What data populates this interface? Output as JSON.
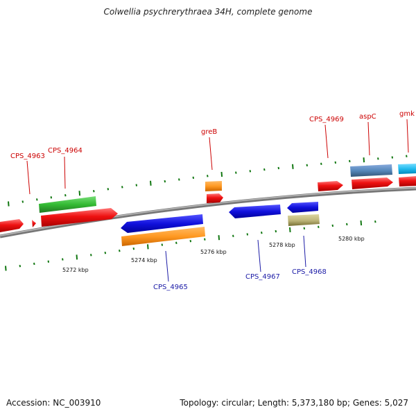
{
  "title": "Colwellia psychrerythraea 34H, complete genome",
  "footer": {
    "accession": "Accession: NC_003910",
    "summary": "Topology: circular; Length: 5,373,180 bp; Genes: 5,027"
  },
  "scale_labels": [
    "5272 kbp",
    "5274 kbp",
    "5276 kbp",
    "5278 kbp",
    "5280 kbp"
  ],
  "genes_top": [
    {
      "label": "CPS_4963"
    },
    {
      "label": "CPS_4964"
    },
    {
      "label": "greB"
    },
    {
      "label": "CPS_4969"
    },
    {
      "label": "aspC"
    },
    {
      "label": "gmk"
    }
  ],
  "genes_bottom": [
    {
      "label": "CPS_4965"
    },
    {
      "label": "CPS_4967"
    },
    {
      "label": "CPS_4968"
    }
  ],
  "colors": {
    "cds": "#ee1111",
    "green": "#33bb33",
    "orange": "#ff9922",
    "blue": "#1111dd",
    "khaki": "#bbb377",
    "steel": "#5588bb",
    "cyan": "#22bbee",
    "backbone": "#888888",
    "tick": "#117711"
  }
}
